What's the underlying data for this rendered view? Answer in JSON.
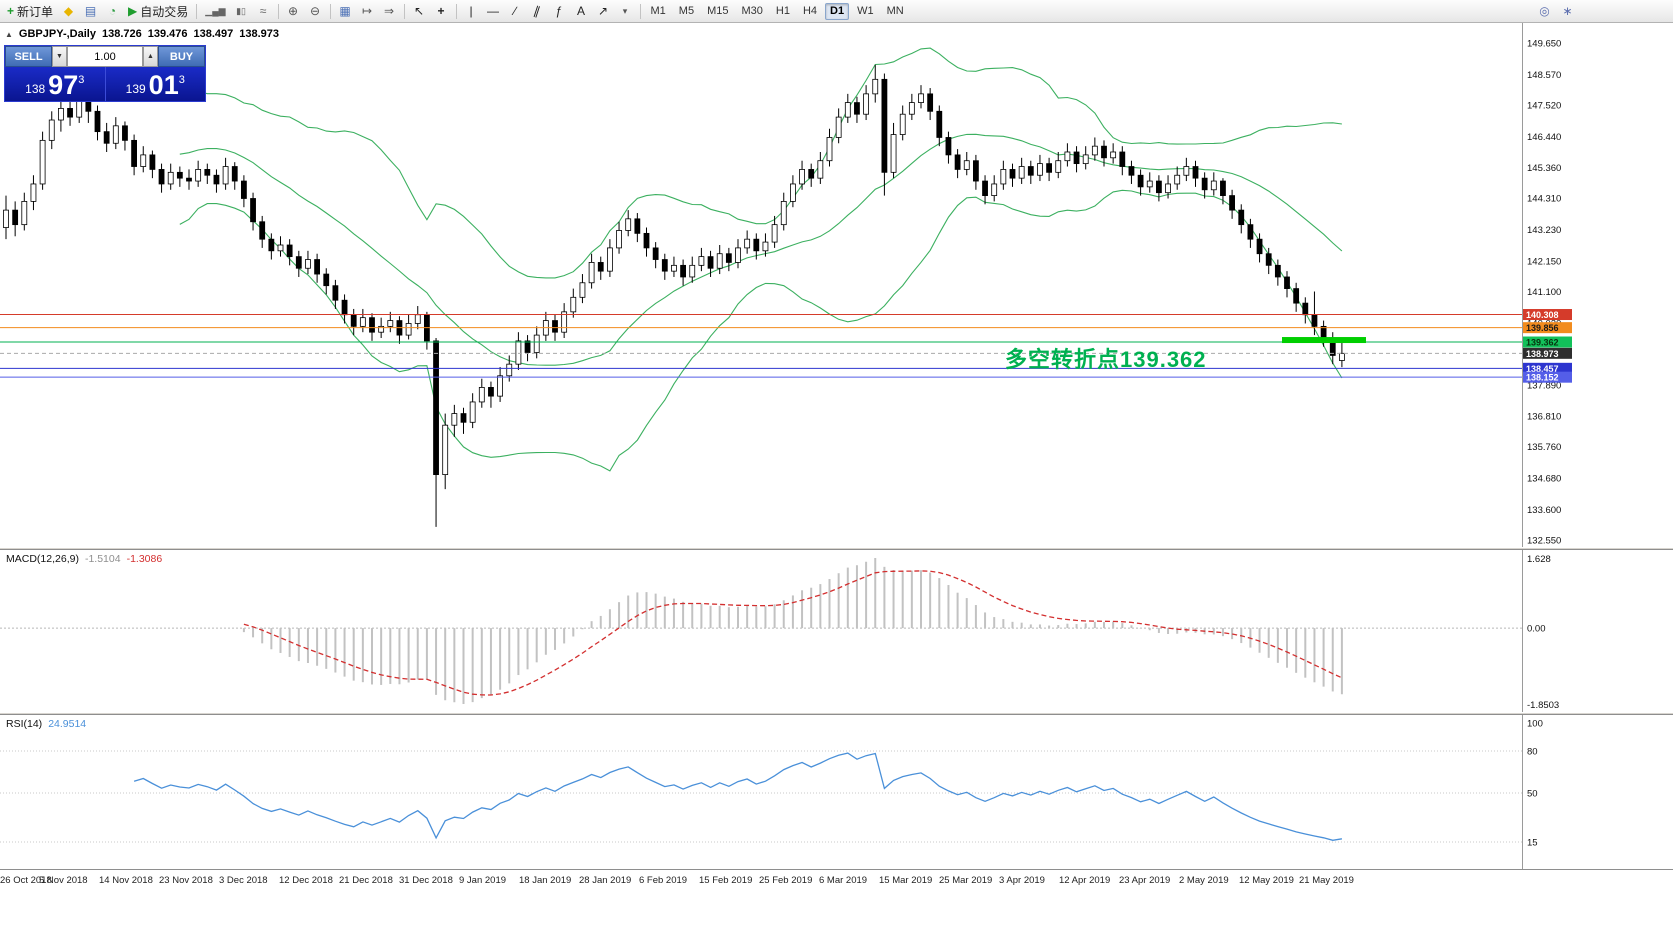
{
  "toolbar": {
    "items": [
      {
        "name": "new-order-button",
        "glyph": "+",
        "color": "#1f9d2f",
        "bold": true,
        "label": "新订单"
      },
      {
        "name": "metaeditor-icon",
        "glyph": "◆",
        "color": "#e8b500"
      },
      {
        "name": "profiles-icon",
        "glyph": "▤",
        "color": "#4a6fb5"
      },
      {
        "name": "history-center-icon",
        "glyph": "◔",
        "color": "#2f9e44"
      },
      {
        "name": "autotrading-button",
        "glyph": "▶",
        "color": "#1f9d2f",
        "label": "自动交易"
      },
      {
        "sep": true
      },
      {
        "name": "bar-chart-type-icon",
        "glyph": "▁▄▆",
        "color": "#666",
        "small": true
      },
      {
        "name": "candlestick-chart-type-icon",
        "glyph": "▮▯",
        "color": "#666",
        "small": true
      },
      {
        "name": "line-chart-type-icon",
        "glyph": "≈",
        "color": "#666"
      },
      {
        "sep": true
      },
      {
        "name": "zoom-in-icon",
        "glyph": "⊕",
        "color": "#555"
      },
      {
        "name": "zoom-out-icon",
        "glyph": "⊖",
        "color": "#555"
      },
      {
        "sep": true
      },
      {
        "name": "tile-windows-icon",
        "glyph": "▦",
        "color": "#4a6fb5"
      },
      {
        "name": "auto-scroll-icon",
        "glyph": "↦",
        "color": "#555"
      },
      {
        "name": "chart-shift-icon",
        "glyph": "⇒",
        "color": "#555"
      },
      {
        "sep": true
      },
      {
        "name": "cursor-icon",
        "glyph": "↖",
        "color": "#222"
      },
      {
        "name": "crosshair-icon",
        "glyph": "+",
        "color": "#222",
        "bold": true
      },
      {
        "sep": true
      },
      {
        "name": "vertical-line-icon",
        "glyph": "|",
        "color": "#222"
      },
      {
        "name": "horizontal-line-icon",
        "glyph": "—",
        "color": "#222"
      },
      {
        "name": "trendline-icon",
        "glyph": "∕",
        "color": "#222"
      },
      {
        "name": "equidistant-channel-icon",
        "glyph": "∥",
        "color": "#222",
        "skew": true
      },
      {
        "name": "fibonacci-icon",
        "glyph": "ƒ",
        "color": "#222"
      },
      {
        "name": "text-tool-icon",
        "glyph": "A",
        "color": "#222"
      },
      {
        "name": "arrows-tool-icon",
        "glyph": "↗",
        "color": "#222"
      },
      {
        "name": "arrows-dropdown-icon",
        "glyph": "▾",
        "color": "#555",
        "small": true
      },
      {
        "sep": true
      }
    ],
    "timeframes": [
      "M1",
      "M5",
      "M15",
      "M30",
      "H1",
      "H4",
      "D1",
      "W1",
      "MN"
    ],
    "active_timeframe": "D1",
    "right_icons": [
      {
        "name": "search-icon",
        "glyph": "◎",
        "color": "#5b6dae"
      },
      {
        "name": "settings-icon",
        "glyph": "∗",
        "color": "#5b6dae"
      }
    ]
  },
  "symbol_header": {
    "collapse_glyph": "▲",
    "title": "GBPJPY-,Daily",
    "open": "138.726",
    "high": "139.476",
    "low": "138.497",
    "close": "138.973"
  },
  "one_click_panel": {
    "sell_label": "SELL",
    "buy_label": "BUY",
    "volume": "1.00",
    "volume_down_glyph": "▼",
    "volume_up_glyph": "▲",
    "sell_price": {
      "prefix": "138",
      "big": "97",
      "sup": "3"
    },
    "buy_price": {
      "prefix": "139",
      "big": "01",
      "sup": "3"
    }
  },
  "annotation": {
    "text": "多空转折点139.362",
    "color": "#00b050"
  },
  "price_axis_labels": [
    "149.650",
    "148.570",
    "147.520",
    "146.440",
    "145.360",
    "144.310",
    "143.230",
    "142.150",
    "141.100",
    "140.020",
    "138.940",
    "137.890",
    "136.810",
    "135.760",
    "134.680",
    "133.600",
    "132.550"
  ],
  "price_tags": [
    {
      "name": "resistance-line-140308",
      "price": 140.308,
      "label": "140.308",
      "line_color": "#d53b2a",
      "tag_bg": "#d53b2a",
      "tag_fg": "#ffffff"
    },
    {
      "name": "resistance-line-139856",
      "price": 139.856,
      "label": "139.856",
      "line_color": "#f28c1e",
      "tag_bg": "#f28c1e",
      "tag_fg": "#1a1a1a"
    },
    {
      "name": "pivot-line-139362",
      "price": 139.362,
      "label": "139.362",
      "line_color": "#00b050",
      "tag_bg": "#12c15a",
      "tag_fg": "#06320f"
    },
    {
      "name": "current-price-line",
      "price": 138.973,
      "label": "138.973",
      "line_color": "#aaaaaa",
      "dash": true,
      "tag_bg": "#2e2e2e",
      "tag_fg": "#ffffff"
    },
    {
      "name": "support-line-138457",
      "price": 138.457,
      "label": "138.457",
      "line_color": "#2d35cf",
      "tag_bg": "#2d35cf",
      "tag_fg": "#ffffff"
    },
    {
      "name": "support-line-138152",
      "price": 138.152,
      "label": "138.152",
      "line_color": "#545ee8",
      "tag_bg": "#545ee8",
      "tag_fg": "#ffffff"
    }
  ],
  "highlight_bar": {
    "price": 139.43,
    "color": "#00cf00"
  },
  "chart_data": {
    "type": "candlestick",
    "symbol": "GBPJPY",
    "timeframe": "Daily",
    "price_axis_top": 149.65,
    "price_axis_bottom": 132.55,
    "indicators": {
      "bollinger": {
        "period": 20,
        "deviation": 2,
        "color": "#3cb060"
      },
      "macd": {
        "fast": 12,
        "slow": 26,
        "signal": 9
      },
      "rsi": {
        "period": 14
      }
    },
    "candles": [
      [
        143.3,
        144.4,
        142.9,
        143.9
      ],
      [
        143.9,
        144.2,
        143,
        143.4
      ],
      [
        143.4,
        144.5,
        143.2,
        144.2
      ],
      [
        144.2,
        145.1,
        143.9,
        144.8
      ],
      [
        144.8,
        146.6,
        144.6,
        146.3
      ],
      [
        146.3,
        147.3,
        146,
        147
      ],
      [
        147,
        147.7,
        146.6,
        147.4
      ],
      [
        147.4,
        147.8,
        146.8,
        147.1
      ],
      [
        147.1,
        148.1,
        146.9,
        147.7
      ],
      [
        147.7,
        148,
        146.9,
        147.3
      ],
      [
        147.3,
        147.5,
        146.3,
        146.6
      ],
      [
        146.6,
        146.9,
        145.9,
        146.2
      ],
      [
        146.2,
        147.1,
        146,
        146.8
      ],
      [
        146.8,
        146.95,
        145.95,
        146.3
      ],
      [
        146.3,
        146.5,
        145.1,
        145.4
      ],
      [
        145.4,
        146.1,
        145.2,
        145.8
      ],
      [
        145.8,
        145.95,
        145,
        145.3
      ],
      [
        145.3,
        145.5,
        144.5,
        144.8
      ],
      [
        144.8,
        145.5,
        144.6,
        145.2
      ],
      [
        145.2,
        145.4,
        144.7,
        145
      ],
      [
        145,
        145.3,
        144.6,
        144.9
      ],
      [
        144.9,
        145.6,
        144.7,
        145.3
      ],
      [
        145.3,
        145.5,
        144.8,
        145.1
      ],
      [
        145.1,
        145.3,
        144.5,
        144.8
      ],
      [
        144.8,
        145.7,
        144.6,
        145.4
      ],
      [
        145.4,
        145.55,
        144.6,
        144.9
      ],
      [
        144.9,
        145.1,
        144,
        144.3
      ],
      [
        144.3,
        144.5,
        143.2,
        143.5
      ],
      [
        143.5,
        143.7,
        142.6,
        142.9
      ],
      [
        142.9,
        143.1,
        142.2,
        142.5
      ],
      [
        142.5,
        143,
        142.3,
        142.7
      ],
      [
        142.7,
        142.9,
        142,
        142.3
      ],
      [
        142.3,
        142.5,
        141.6,
        141.9
      ],
      [
        141.9,
        142.5,
        141.7,
        142.2
      ],
      [
        142.2,
        142.4,
        141.4,
        141.7
      ],
      [
        141.7,
        141.9,
        141,
        141.3
      ],
      [
        141.3,
        141.5,
        140.5,
        140.8
      ],
      [
        140.8,
        141,
        140,
        140.3
      ],
      [
        140.3,
        140.5,
        139.6,
        139.9
      ],
      [
        139.9,
        140.5,
        139.7,
        140.2
      ],
      [
        140.2,
        140.35,
        139.4,
        139.7
      ],
      [
        139.7,
        140.2,
        139.5,
        139.9
      ],
      [
        139.9,
        140.4,
        139.7,
        140.1
      ],
      [
        140.1,
        140.25,
        139.3,
        139.6
      ],
      [
        139.6,
        140.3,
        139.45,
        140
      ],
      [
        140,
        140.6,
        139.8,
        140.3
      ],
      [
        140.3,
        140.4,
        139.1,
        139.4
      ],
      [
        139.4,
        139.5,
        133,
        134.8
      ],
      [
        134.8,
        136.9,
        134.3,
        136.5
      ],
      [
        136.5,
        137.2,
        136.1,
        136.9
      ],
      [
        136.9,
        137.1,
        136.2,
        136.6
      ],
      [
        136.6,
        137.6,
        136.4,
        137.3
      ],
      [
        137.3,
        138.1,
        137.1,
        137.8
      ],
      [
        137.8,
        138,
        137.1,
        137.5
      ],
      [
        137.5,
        138.5,
        137.3,
        138.2
      ],
      [
        138.2,
        138.9,
        138,
        138.6
      ],
      [
        138.6,
        139.7,
        138.4,
        139.4
      ],
      [
        139.4,
        139.6,
        138.7,
        139
      ],
      [
        139,
        139.9,
        138.8,
        139.6
      ],
      [
        139.6,
        140.4,
        139.4,
        140.1
      ],
      [
        140.1,
        140.3,
        139.4,
        139.7
      ],
      [
        139.7,
        140.7,
        139.5,
        140.4
      ],
      [
        140.4,
        141.2,
        140.2,
        140.9
      ],
      [
        140.9,
        141.7,
        140.7,
        141.4
      ],
      [
        141.4,
        142.4,
        141.2,
        142.1
      ],
      [
        142.1,
        142.3,
        141.5,
        141.8
      ],
      [
        141.8,
        142.9,
        141.6,
        142.6
      ],
      [
        142.6,
        143.5,
        142.4,
        143.2
      ],
      [
        143.2,
        143.9,
        143,
        143.6
      ],
      [
        143.6,
        143.8,
        142.8,
        143.1
      ],
      [
        143.1,
        143.3,
        142.3,
        142.6
      ],
      [
        142.6,
        142.8,
        141.9,
        142.2
      ],
      [
        142.2,
        142.4,
        141.5,
        141.8
      ],
      [
        141.8,
        142.3,
        141.6,
        142
      ],
      [
        142,
        142.2,
        141.3,
        141.6
      ],
      [
        141.6,
        142.3,
        141.4,
        142
      ],
      [
        142,
        142.6,
        141.8,
        142.3
      ],
      [
        142.3,
        142.5,
        141.6,
        141.9
      ],
      [
        141.9,
        142.7,
        141.7,
        142.4
      ],
      [
        142.4,
        142.6,
        141.8,
        142.1
      ],
      [
        142.1,
        142.9,
        141.9,
        142.6
      ],
      [
        142.6,
        143.2,
        142.4,
        142.9
      ],
      [
        142.9,
        143.1,
        142.2,
        142.5
      ],
      [
        142.5,
        143.1,
        142.3,
        142.8
      ],
      [
        142.8,
        143.7,
        142.6,
        143.4
      ],
      [
        143.4,
        144.5,
        143.2,
        144.2
      ],
      [
        144.2,
        145.1,
        144,
        144.8
      ],
      [
        144.8,
        145.6,
        144.6,
        145.3
      ],
      [
        145.3,
        145.5,
        144.7,
        145
      ],
      [
        145,
        145.9,
        144.8,
        145.6
      ],
      [
        145.6,
        146.7,
        145.4,
        146.4
      ],
      [
        146.4,
        147.4,
        146.2,
        147.1
      ],
      [
        147.1,
        147.9,
        146.9,
        147.6
      ],
      [
        147.6,
        147.8,
        146.9,
        147.2
      ],
      [
        147.2,
        148.2,
        147,
        147.9
      ],
      [
        147.9,
        148.9,
        147.6,
        148.4
      ],
      [
        148.4,
        148.6,
        144.4,
        145.2
      ],
      [
        145.2,
        146.9,
        145,
        146.5
      ],
      [
        146.5,
        147.5,
        146.3,
        147.2
      ],
      [
        147.2,
        147.9,
        147,
        147.6
      ],
      [
        147.6,
        148.2,
        147.4,
        147.9
      ],
      [
        147.9,
        148.1,
        147,
        147.3
      ],
      [
        147.3,
        147.5,
        146.1,
        146.4
      ],
      [
        146.4,
        146.6,
        145.5,
        145.8
      ],
      [
        145.8,
        146,
        145,
        145.3
      ],
      [
        145.3,
        145.9,
        145.1,
        145.6
      ],
      [
        145.6,
        145.8,
        144.6,
        144.9
      ],
      [
        144.9,
        145.1,
        144.1,
        144.4
      ],
      [
        144.4,
        145.1,
        144.2,
        144.8
      ],
      [
        144.8,
        145.6,
        144.6,
        145.3
      ],
      [
        145.3,
        145.5,
        144.7,
        145
      ],
      [
        145,
        145.7,
        144.8,
        145.4
      ],
      [
        145.4,
        145.6,
        144.8,
        145.1
      ],
      [
        145.1,
        145.8,
        144.9,
        145.5
      ],
      [
        145.5,
        145.7,
        144.9,
        145.2
      ],
      [
        145.2,
        145.9,
        145,
        145.6
      ],
      [
        145.6,
        146.2,
        145.4,
        145.9
      ],
      [
        145.9,
        146.1,
        145.2,
        145.5
      ],
      [
        145.5,
        146.1,
        145.3,
        145.8
      ],
      [
        145.8,
        146.4,
        145.6,
        146.1
      ],
      [
        146.1,
        146.3,
        145.4,
        145.7
      ],
      [
        145.7,
        146.2,
        145.5,
        145.9
      ],
      [
        145.9,
        146.1,
        145.1,
        145.4
      ],
      [
        145.4,
        145.6,
        144.8,
        145.1
      ],
      [
        145.1,
        145.3,
        144.4,
        144.7
      ],
      [
        144.7,
        145.2,
        144.5,
        144.9
      ],
      [
        144.9,
        145.1,
        144.2,
        144.5
      ],
      [
        144.5,
        145.1,
        144.3,
        144.8
      ],
      [
        144.8,
        145.4,
        144.6,
        145.1
      ],
      [
        145.1,
        145.7,
        144.9,
        145.4
      ],
      [
        145.4,
        145.6,
        144.7,
        145
      ],
      [
        145,
        145.2,
        144.3,
        144.6
      ],
      [
        144.6,
        145.2,
        144.4,
        144.9
      ],
      [
        144.9,
        145,
        144.1,
        144.4
      ],
      [
        144.4,
        144.6,
        143.6,
        143.9
      ],
      [
        143.9,
        144.1,
        143.1,
        143.4
      ],
      [
        143.4,
        143.6,
        142.6,
        142.9
      ],
      [
        142.9,
        143.1,
        142.1,
        142.4
      ],
      [
        142.4,
        142.6,
        141.7,
        142
      ],
      [
        142,
        142.2,
        141.3,
        141.6
      ],
      [
        141.6,
        141.8,
        140.9,
        141.2
      ],
      [
        141.2,
        141.4,
        140.4,
        140.7
      ],
      [
        140.7,
        140.9,
        140,
        140.3
      ],
      [
        140.3,
        141.1,
        139.6,
        139.9
      ],
      [
        139.9,
        140.1,
        139.2,
        139.5
      ],
      [
        139.5,
        139.7,
        138.6,
        138.9
      ],
      [
        138.726,
        139.476,
        138.497,
        138.973
      ]
    ]
  },
  "macd_panel": {
    "label": "MACD(12,26,9)",
    "main_value": "-1.5104",
    "signal_value": "-1.3086",
    "axis_labels": [
      "1.628",
      "0.00",
      "-1.8503"
    ],
    "histogram_color": "#c2c2c2",
    "signal_color": "#d32f2f"
  },
  "rsi_panel": {
    "label": "RSI(14)",
    "value": "24.9514",
    "axis_labels": [
      "100",
      "80",
      "50",
      "15"
    ],
    "levels": [
      80,
      50,
      15
    ],
    "line_color": "#4a90d9"
  },
  "time_axis": [
    "26 Oct 2018",
    "5 Nov 2018",
    "14 Nov 2018",
    "23 Nov 2018",
    "3 Dec 2018",
    "12 Dec 2018",
    "21 Dec 2018",
    "31 Dec 2018",
    "9 Jan 2019",
    "18 Jan 2019",
    "28 Jan 2019",
    "6 Feb 2019",
    "15 Feb 2019",
    "25 Feb 2019",
    "6 Mar 2019",
    "15 Mar 2019",
    "25 Mar 2019",
    "3 Apr 2019",
    "12 Apr 2019",
    "23 Apr 2019",
    "2 May 2019",
    "12 May 2019",
    "21 May 2019"
  ]
}
